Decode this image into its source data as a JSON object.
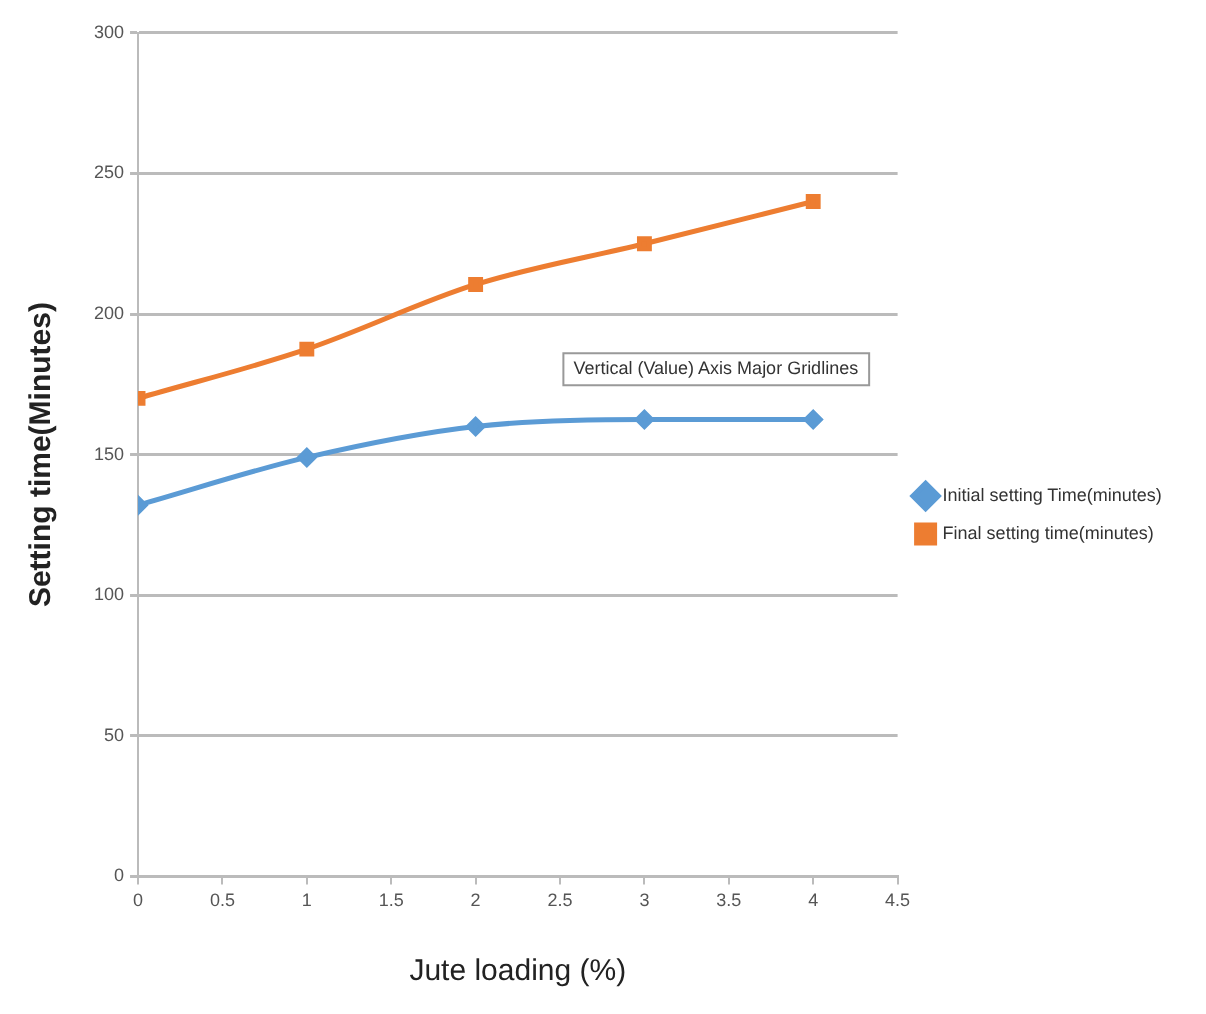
{
  "chart_data": {
    "type": "line",
    "xlabel": "Jute loading (%)",
    "ylabel": "Setting time(Minutes)",
    "x": [
      0,
      1,
      2,
      3,
      4
    ],
    "series": [
      {
        "name": "Initial setting Time(minutes)",
        "color": "#5b9bd5",
        "marker": "diamond",
        "values": [
          132,
          149,
          160,
          162.5,
          162.5
        ]
      },
      {
        "name": "Final setting time(minutes)",
        "color": "#ed7d31",
        "marker": "square",
        "values": [
          170,
          187.5,
          210.5,
          225,
          240
        ]
      }
    ],
    "xlim": [
      0,
      4.5
    ],
    "xticks": [
      0,
      0.5,
      1,
      1.5,
      2,
      2.5,
      3,
      3.5,
      4,
      4.5
    ],
    "ylim": [
      0,
      300
    ],
    "yticks": [
      0,
      50,
      100,
      150,
      200,
      250,
      300
    ],
    "grid": "y",
    "legend": "right",
    "line_style": "solid",
    "annotations": [
      "Vertical (Value) Axis Major Gridlines"
    ]
  }
}
